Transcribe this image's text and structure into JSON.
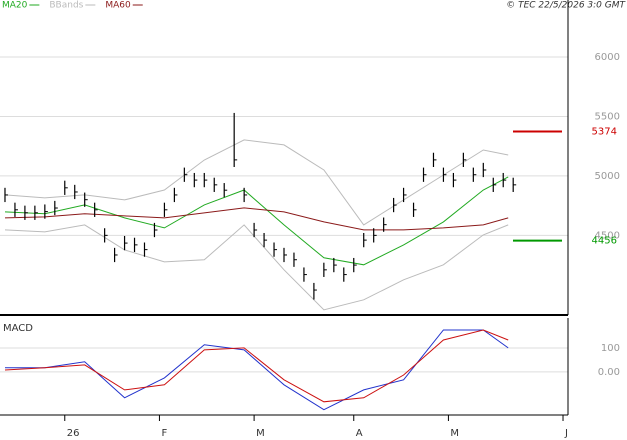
{
  "chart_data": [
    {
      "type": "ohlc",
      "source": "© TEC 22/5/2026 3:0 GMT",
      "x": [
        1,
        3,
        5,
        7,
        9,
        11,
        13,
        15,
        17,
        19,
        21,
        23,
        25,
        27,
        29,
        31,
        33,
        35,
        37,
        39,
        41,
        43,
        45,
        47,
        49,
        51,
        53,
        55,
        57,
        59,
        61,
        63,
        65,
        67,
        69,
        71,
        73,
        75,
        77,
        79,
        81,
        83,
        85,
        87,
        89,
        91,
        93,
        95,
        97,
        99,
        101,
        103
      ],
      "close": [
        4840,
        4715,
        4690,
        4690,
        4700,
        4730,
        4900,
        4865,
        4800,
        4715,
        4500,
        4335,
        4435,
        4420,
        4380,
        4545,
        4715,
        4840,
        5010,
        4965,
        4965,
        4925,
        4880,
        5135,
        4840,
        4545,
        4460,
        4380,
        4335,
        4295,
        4170,
        4040,
        4210,
        4250,
        4170,
        4250,
        4460,
        4500,
        4590,
        4755,
        4840,
        4715,
        5010,
        5135,
        5010,
        4965,
        5135,
        5010,
        5050,
        4925,
        4965,
        4925
      ],
      "high": [
        4900,
        4775,
        4750,
        4750,
        4760,
        4790,
        4960,
        4925,
        4860,
        4775,
        4560,
        4395,
        4495,
        4480,
        4440,
        4605,
        4775,
        4900,
        5070,
        5025,
        5025,
        4985,
        4940,
        5530,
        4900,
        4605,
        4520,
        4440,
        4395,
        4355,
        4230,
        4100,
        4270,
        4310,
        4230,
        4310,
        4520,
        4560,
        4650,
        4815,
        4900,
        4775,
        5070,
        5195,
        5070,
        5025,
        5195,
        5070,
        5110,
        4985,
        5025,
        4985
      ],
      "low": [
        4780,
        4655,
        4630,
        4630,
        4640,
        4670,
        4840,
        4805,
        4740,
        4655,
        4440,
        4275,
        4375,
        4360,
        4320,
        4485,
        4655,
        4780,
        4950,
        4905,
        4905,
        4865,
        4820,
        5075,
        4780,
        4485,
        4400,
        4320,
        4275,
        4235,
        4110,
        3960,
        4150,
        4190,
        4110,
        4190,
        4400,
        4440,
        4530,
        4695,
        4780,
        4655,
        4950,
        5075,
        4950,
        4905,
        5075,
        4950,
        4990,
        4865,
        4905,
        4865
      ],
      "series": [
        {
          "name": "MA20",
          "color": "#22aa22",
          "x": [
            1,
            9,
            17,
            25,
            33,
            41,
            49,
            57,
            65,
            73,
            81,
            89,
            97,
            102
          ],
          "values": [
            4697,
            4681,
            4756,
            4647,
            4563,
            4756,
            4882,
            4588,
            4311,
            4252,
            4420,
            4613,
            4882,
            4992
          ]
        },
        {
          "name": "BBands",
          "color": "#bbbbbb",
          "x": [
            1,
            9,
            17,
            25,
            33,
            41,
            49,
            57,
            65,
            73,
            81,
            89,
            97,
            102
          ],
          "upper": [
            4840,
            4815,
            4840,
            4798,
            4882,
            5134,
            5303,
            5261,
            5050,
            4588,
            4798,
            5008,
            5218,
            5176
          ],
          "lower": [
            4546,
            4529,
            4588,
            4378,
            4277,
            4294,
            4588,
            4210,
            3874,
            3958,
            4126,
            4252,
            4504,
            4588
          ]
        },
        {
          "name": "MA60",
          "color": "#8b1a1a",
          "x": [
            1,
            9,
            17,
            25,
            33,
            41,
            49,
            57,
            65,
            73,
            81,
            89,
            97,
            102
          ],
          "values": [
            4647,
            4655,
            4681,
            4664,
            4647,
            4689,
            4731,
            4697,
            4613,
            4546,
            4546,
            4563,
            4588,
            4647
          ]
        }
      ],
      "annotations": [
        {
          "value": 5374,
          "color": "#cc0000"
        },
        {
          "value": 4456,
          "color": "#009900"
        }
      ],
      "xlim": [
        0,
        114
      ],
      "ylim": [
        3830,
        6480
      ],
      "yticks": [
        4500,
        5000,
        5500,
        6000
      ],
      "grid": true
    },
    {
      "type": "line",
      "title": "MACD",
      "x": [
        1,
        9,
        17,
        25,
        33,
        41,
        49,
        57,
        65,
        73,
        81,
        89,
        97,
        102
      ],
      "series": [
        {
          "color": "#2233cc",
          "values": [
            17,
            17,
            42,
            -108,
            -25,
            113,
            92,
            -54,
            -158,
            -75,
            -33,
            175,
            175,
            100
          ]
        },
        {
          "color": "#cc1111",
          "values": [
            8,
            17,
            29,
            -75,
            -54,
            92,
            100,
            -33,
            -125,
            -108,
            -13,
            133,
            175,
            133
          ]
        }
      ],
      "xlim": [
        0,
        114
      ],
      "ylim": [
        -180,
        225
      ],
      "yticks": [
        {
          "value": 0,
          "label": "0.00"
        },
        100
      ],
      "xticks": [
        {
          "value": 13,
          "label": "26"
        },
        {
          "value": 32,
          "label": "F"
        },
        {
          "value": 51,
          "label": "M"
        },
        {
          "value": 71,
          "label": "A"
        },
        {
          "value": 90,
          "label": "M"
        },
        {
          "value": 113,
          "label": "J"
        }
      ]
    }
  ]
}
